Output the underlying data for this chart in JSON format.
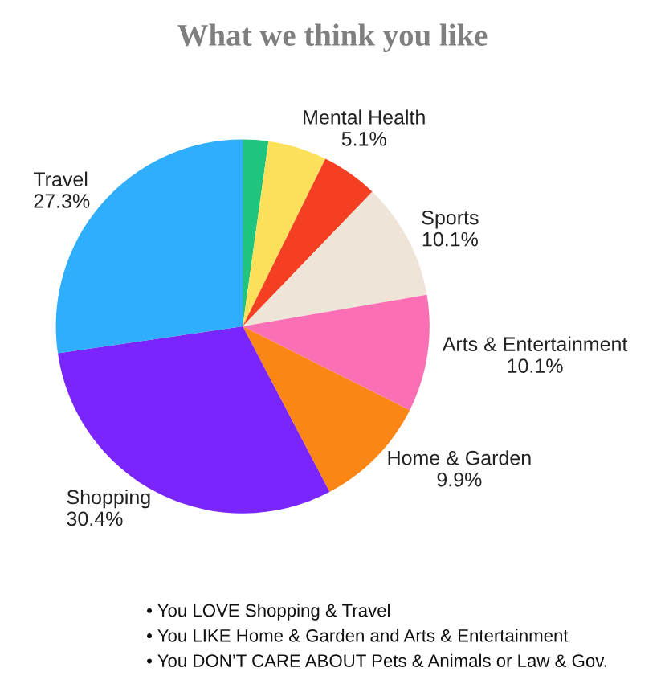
{
  "chart_data": {
    "type": "pie",
    "title": "What we think you like",
    "categories": [
      null,
      "Mental Health",
      null,
      "Sports",
      "Arts & Entertainment",
      "Home & Garden",
      "Shopping",
      "Travel"
    ],
    "values": [
      2.2,
      5.1,
      4.9,
      10.1,
      10.1,
      9.9,
      30.4,
      27.3
    ],
    "value_labels": [
      null,
      "5.1%",
      null,
      "10.1%",
      "10.1%",
      "9.9%",
      "30.4%",
      "27.3%"
    ],
    "colors": [
      "#1fc47e",
      "#fde15a",
      "#f43f22",
      "#efe4d8",
      "#fb6fb4",
      "#fb8616",
      "#7925fb",
      "#2eaefc"
    ],
    "annotations": [
      "• You LOVE Shopping & Travel",
      "• You LIKE Home & Garden and Arts & Entertainment",
      "• You DON’T CARE ABOUT Pets & Animals or Law & Gov."
    ]
  }
}
